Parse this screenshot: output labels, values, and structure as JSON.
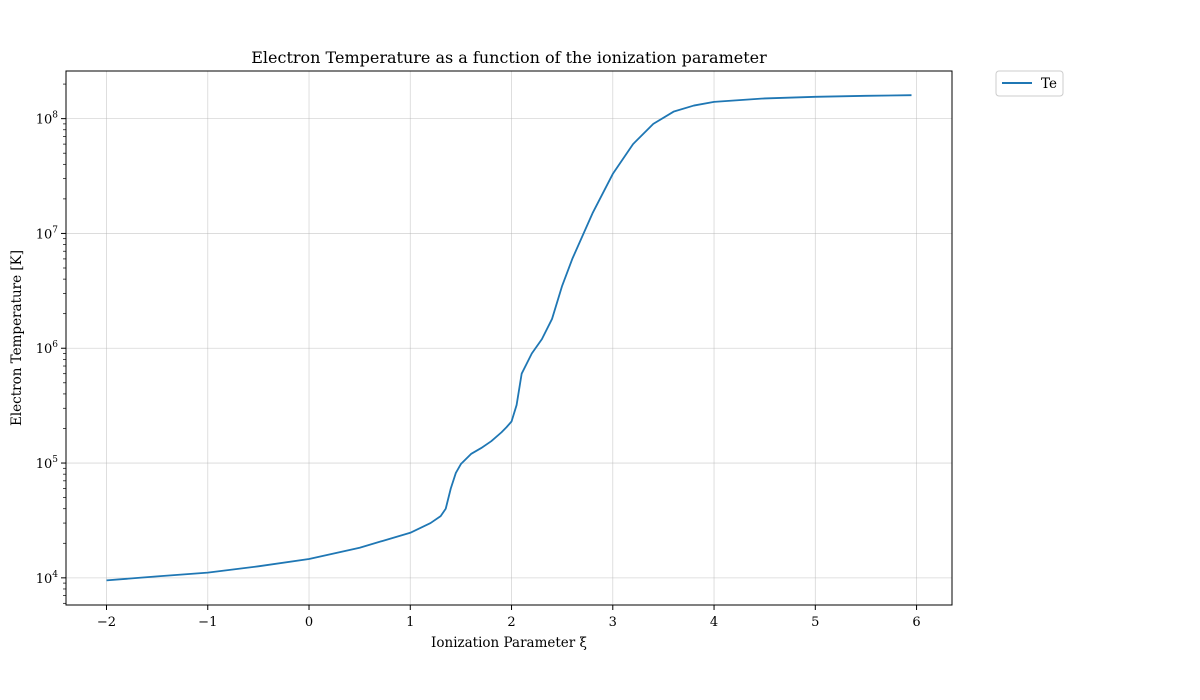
{
  "chart_data": {
    "type": "line",
    "title": "Electron Temperature as a function of the ionization parameter",
    "xlabel": "Ionization Parameter ξ",
    "ylabel": "Electron Temperature [K]",
    "xlim": [
      -2.4,
      6.35
    ],
    "ylim": [
      5800,
      260000000
    ],
    "yscale": "log",
    "grid": true,
    "legend_position": "outside-top-right",
    "x_ticks": [
      {
        "value": -2,
        "label": "−2"
      },
      {
        "value": -1,
        "label": "−1"
      },
      {
        "value": 0,
        "label": "0"
      },
      {
        "value": 1,
        "label": "1"
      },
      {
        "value": 2,
        "label": "2"
      },
      {
        "value": 3,
        "label": "3"
      },
      {
        "value": 4,
        "label": "4"
      },
      {
        "value": 5,
        "label": "5"
      },
      {
        "value": 6,
        "label": "6"
      }
    ],
    "y_ticks": [
      {
        "value": 10000,
        "base": "10",
        "exp": "4"
      },
      {
        "value": 100000,
        "base": "10",
        "exp": "5"
      },
      {
        "value": 1000000,
        "base": "10",
        "exp": "6"
      },
      {
        "value": 10000000,
        "base": "10",
        "exp": "7"
      },
      {
        "value": 100000000,
        "base": "10",
        "exp": "8"
      }
    ],
    "series": [
      {
        "name": "Te",
        "color": "#1f77b4",
        "x": [
          -2.0,
          -1.5,
          -1.0,
          -0.5,
          0.0,
          0.5,
          1.0,
          1.2,
          1.3,
          1.35,
          1.4,
          1.45,
          1.5,
          1.6,
          1.7,
          1.8,
          1.9,
          1.95,
          2.0,
          2.05,
          2.1,
          2.2,
          2.3,
          2.4,
          2.5,
          2.6,
          2.8,
          3.0,
          3.2,
          3.4,
          3.6,
          3.8,
          4.0,
          4.5,
          5.0,
          5.5,
          5.95
        ],
        "y": [
          9500,
          10300,
          11100,
          12600,
          14600,
          18300,
          24700,
          30000,
          34500,
          40000,
          60000,
          82000,
          98000,
          120000,
          135000,
          155000,
          185000,
          205000,
          230000,
          320000,
          600000,
          900000,
          1200000,
          1800000,
          3500000,
          6000000,
          15000000,
          33000000,
          60000000,
          90000000,
          115000000,
          130000000,
          140000000,
          150000000,
          155000000,
          158000000,
          160000000
        ]
      }
    ]
  }
}
